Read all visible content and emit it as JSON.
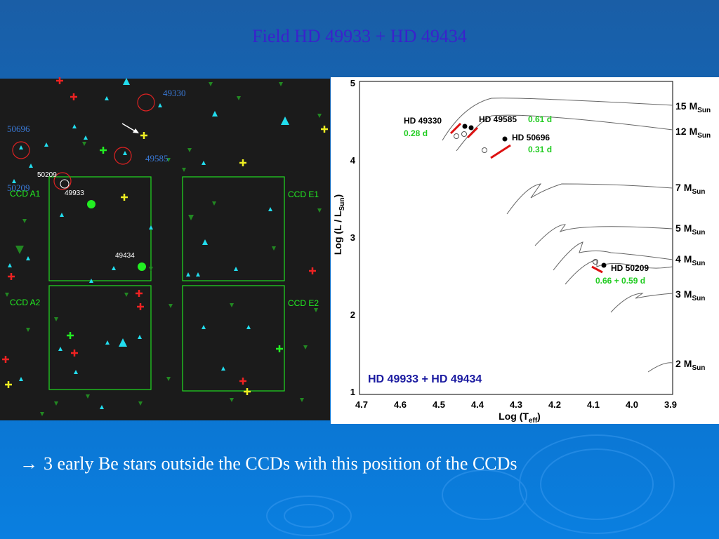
{
  "title": "Field HD 49933 + HD 49434",
  "bullet_marker": "→",
  "bullet": "3 early Be stars outside the CCDs with this position of the CCDs",
  "sky_map": {
    "star_labels": [
      "49330",
      "50696",
      "49585",
      "50209",
      "50209",
      "49933",
      "49434"
    ],
    "ccd_labels": [
      "CCD A1",
      "CCD E1",
      "CCD A2",
      "CCD E2"
    ]
  },
  "hr_diagram": {
    "caption": "HD 49933 + HD 49434",
    "x_label": {
      "main": "Log (T",
      "sub": "eff",
      "end": ")"
    },
    "y_label": {
      "main": "Log (L / L",
      "sub": "Sun",
      "end": ")"
    },
    "xticks": [
      "4.7",
      "4.6",
      "4.5",
      "4.4",
      "4.3",
      "4.2",
      "4.1",
      "4.0",
      "3.9"
    ],
    "yticks": [
      "5",
      "4",
      "3",
      "2",
      "1"
    ],
    "mass_unit": "M",
    "mass_sub": "Sun",
    "masses": [
      "15",
      "12",
      "7",
      "5",
      "4",
      "3",
      "2"
    ],
    "stars": [
      {
        "name": "HD 49330",
        "period": "0.28 d"
      },
      {
        "name": "HD 49585",
        "period": "0.61 d"
      },
      {
        "name": "HD 50696",
        "period": "0.31 d"
      },
      {
        "name": "HD 50209",
        "period": "0.66 + 0.59 d"
      }
    ]
  }
}
